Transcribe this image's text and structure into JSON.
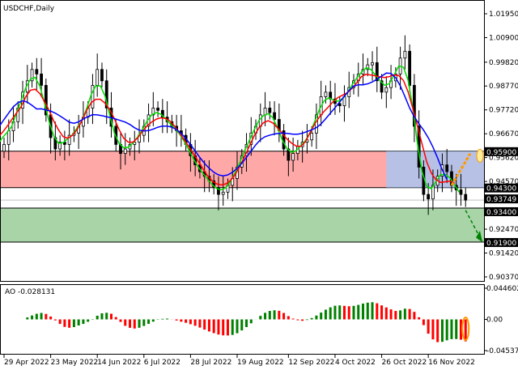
{
  "title": "USDCHF,Daily",
  "ao_label": "AO -0.028131",
  "colors": {
    "bull": "#008000",
    "bear": "#ff0000",
    "ma_fast": "#00dd00",
    "ma_mid": "#ff0000",
    "ma_slow": "#0000ff",
    "resistance_zone": "#ff9999",
    "support_zone": "#99cc99",
    "highlight": "#99ccff",
    "arrow_up": "#ff9900",
    "arrow_down": "#008000"
  },
  "chart_data": [
    {
      "type": "candlestick",
      "title": "USDCHF,Daily",
      "ylim": [
        0.9037,
        1.0195
      ],
      "yticks": [
        1.0195,
        1.009,
        0.9982,
        0.9877,
        0.9772,
        0.9667,
        0.9562,
        0.9457,
        0.9247,
        0.9142,
        0.9037
      ],
      "ytick_labels": [
        "1.01950",
        "1.00900",
        "0.99820",
        "0.98770",
        "0.97720",
        "0.96670",
        "0.95620",
        "0.94570",
        "0.92470",
        "0.91420",
        "0.90370"
      ],
      "price_labels": [
        "0.95900",
        "0.94300",
        "0.93749",
        "0.93400",
        "0.91900"
      ],
      "zones": [
        {
          "name": "resistance",
          "from": 0.943,
          "to": 0.959
        },
        {
          "name": "support",
          "from": 0.919,
          "to": 0.934
        }
      ],
      "current_price": 0.93749,
      "closes": [
        0.962,
        0.968,
        0.972,
        0.978,
        0.985,
        0.99,
        0.995,
        0.993,
        0.988,
        0.975,
        0.965,
        0.96,
        0.963,
        0.962,
        0.966,
        0.967,
        0.97,
        0.974,
        0.978,
        0.988,
        0.995,
        0.99,
        0.978,
        0.97,
        0.962,
        0.958,
        0.96,
        0.962,
        0.963,
        0.966,
        0.97,
        0.975,
        0.978,
        0.977,
        0.974,
        0.972,
        0.97,
        0.968,
        0.966,
        0.962,
        0.957,
        0.953,
        0.95,
        0.948,
        0.946,
        0.943,
        0.94,
        0.941,
        0.944,
        0.947,
        0.952,
        0.957,
        0.962,
        0.967,
        0.97,
        0.975,
        0.978,
        0.976,
        0.973,
        0.968,
        0.96,
        0.955,
        0.958,
        0.961,
        0.963,
        0.964,
        0.967,
        0.975,
        0.983,
        0.985,
        0.982,
        0.98,
        0.979,
        0.983,
        0.987,
        0.99,
        0.993,
        0.995,
        0.997,
        0.998,
        0.99,
        0.985,
        0.987,
        0.99,
        0.993,
        1.0,
        1.003,
        0.988,
        0.97,
        0.952,
        0.94,
        0.938,
        0.944,
        0.948,
        0.953,
        0.95,
        0.944,
        0.942,
        0.94,
        0.9375
      ],
      "xtick_labels": [
        {
          "bar": 0,
          "label": "29 Apr 2022"
        },
        {
          "bar": 10,
          "label": "23 May 2022"
        },
        {
          "bar": 20,
          "label": "14 Jun 2022"
        },
        {
          "bar": 30,
          "label": "6 Jul 2022"
        },
        {
          "bar": 40,
          "label": "28 Jul 2022"
        },
        {
          "bar": 50,
          "label": "19 Aug 2022"
        },
        {
          "bar": 61,
          "label": "12 Sep 2022"
        },
        {
          "bar": 71,
          "label": "4 Oct 2022"
        },
        {
          "bar": 81,
          "label": "26 Oct 2022"
        },
        {
          "bar": 91,
          "label": "16 Nov 2022"
        }
      ]
    },
    {
      "type": "bar",
      "title": "AO",
      "ylim": [
        -0.045374,
        0.044602
      ],
      "ytick_labels": [
        "0.044602",
        "0.00",
        "-0.045374"
      ]
    }
  ]
}
